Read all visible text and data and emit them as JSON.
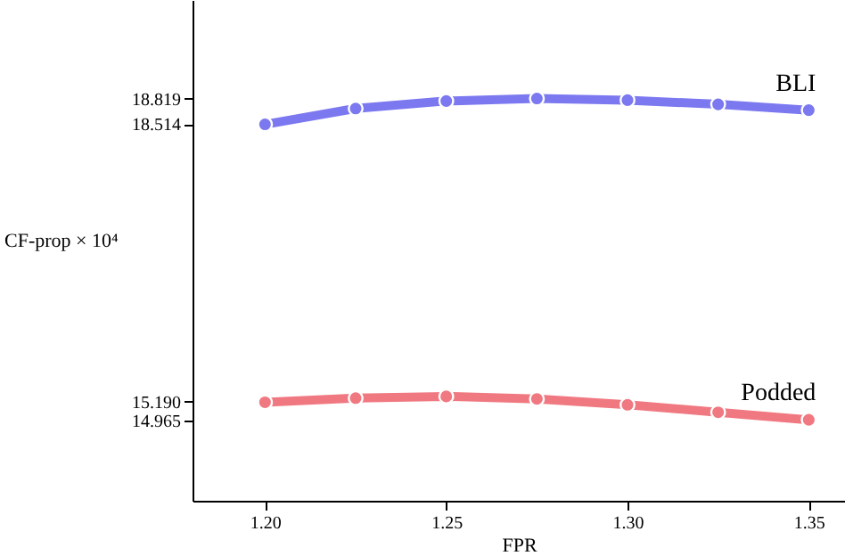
{
  "chart_data": {
    "type": "line",
    "xlabel": "FPR",
    "ylabel": "CF-prop × 10⁴",
    "x": [
      1.2,
      1.225,
      1.25,
      1.275,
      1.3,
      1.325,
      1.35
    ],
    "series": [
      {
        "name": "BLI",
        "color": "#7b78f0",
        "values": [
          18.51,
          18.7,
          18.79,
          18.82,
          18.8,
          18.75,
          18.68
        ]
      },
      {
        "name": "Podded",
        "color": "#f07880",
        "values": [
          15.18,
          15.23,
          15.25,
          15.22,
          15.15,
          15.06,
          14.97
        ]
      }
    ],
    "xlim": [
      1.18,
      1.36
    ],
    "xticks": [
      {
        "value": 1.2,
        "label": "1.20"
      },
      1.25,
      {
        "value": 1.3,
        "label": "1.30"
      },
      1.35
    ],
    "ylim": [
      14,
      20
    ],
    "yticks": [
      {
        "value": 14.965,
        "label": "14.965"
      },
      {
        "value": 15.19,
        "label": "15.190"
      },
      {
        "value": 18.514,
        "label": "18.514"
      },
      {
        "value": 18.819,
        "label": "18.819"
      }
    ],
    "grid": false,
    "marker": "circle",
    "line_style": "solid"
  }
}
